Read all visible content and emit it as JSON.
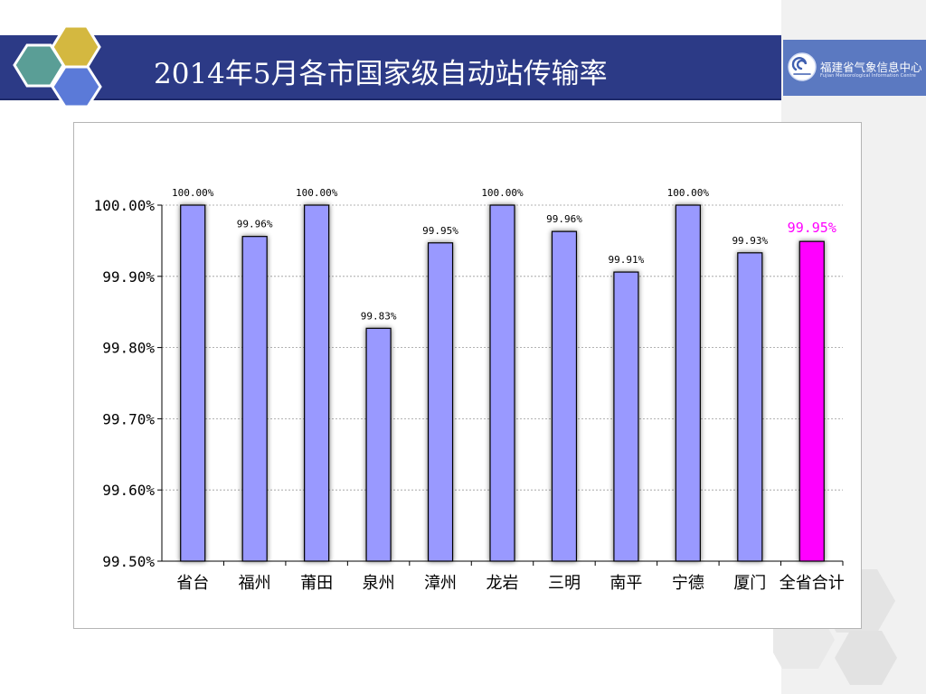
{
  "slide": {
    "title": "2014年5月各市国家级自动站传输率"
  },
  "logo": {
    "name_cn": "福建省气象信息中心",
    "name_en": "Fujian Meteorological Information Centre"
  },
  "colors": {
    "title_band": "#2c3a86",
    "logo_band": "#5b79c1",
    "bar": "#9999ff",
    "total_bar": "#ff00ff",
    "hex_gold": "#d4b840",
    "hex_teal": "#5a9e96",
    "hex_blue": "#5b7ad8"
  },
  "chart_data": {
    "type": "bar",
    "title": "",
    "xlabel": "",
    "ylabel": "",
    "categories": [
      "省台",
      "福州",
      "莆田",
      "泉州",
      "漳州",
      "龙岩",
      "三明",
      "南平",
      "宁德",
      "厦门",
      "全省合计"
    ],
    "values": [
      100.0,
      99.956,
      100.0,
      99.827,
      99.947,
      100.0,
      99.963,
      99.906,
      100.0,
      99.933,
      99.949
    ],
    "data_labels": [
      "100.00%",
      "99.96%",
      "100.00%",
      "99.83%",
      "99.95%",
      "100.00%",
      "99.96%",
      "99.91%",
      "100.00%",
      "99.93%",
      "99.95%"
    ],
    "highlight_index": 10,
    "ylim": [
      99.5,
      100.0
    ],
    "yticks": [
      99.5,
      99.6,
      99.7,
      99.8,
      99.9,
      100.0
    ],
    "ytick_labels": [
      "99.50%",
      "99.60%",
      "99.70%",
      "99.80%",
      "99.90%",
      "100.00%"
    ],
    "grid": true,
    "legend": "none"
  }
}
